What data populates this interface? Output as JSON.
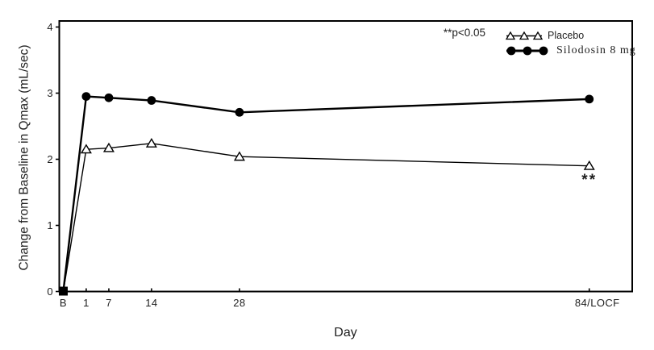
{
  "chart_data": {
    "type": "line",
    "categories": [
      "B",
      "1",
      "7",
      "14",
      "28",
      "84/LOCF"
    ],
    "series": [
      {
        "name": "Placebo",
        "marker": "open-triangle",
        "values": [
          0,
          2.15,
          2.17,
          2.24,
          2.04,
          1.9
        ]
      },
      {
        "name": "Silodosin 8 mg",
        "marker": "filled-circle",
        "values": [
          0,
          2.95,
          2.93,
          2.89,
          2.71,
          2.91
        ]
      }
    ],
    "baseline_marker": "filled-square",
    "title": "",
    "xlabel": "Day",
    "ylabel": "Change from Baseline in Qmax (mL/sec)",
    "ylim": [
      0,
      4
    ],
    "yticks": [
      "0",
      "1",
      "2",
      "3",
      "4"
    ],
    "grid": false,
    "legend_position": "top-right-inside",
    "annotations": {
      "p_note": "**p<0.05",
      "significance": "**",
      "significance_series": "Placebo",
      "significance_category": "84/LOCF"
    },
    "colors": {
      "foreground": "#000000",
      "background": "#ffffff"
    }
  }
}
